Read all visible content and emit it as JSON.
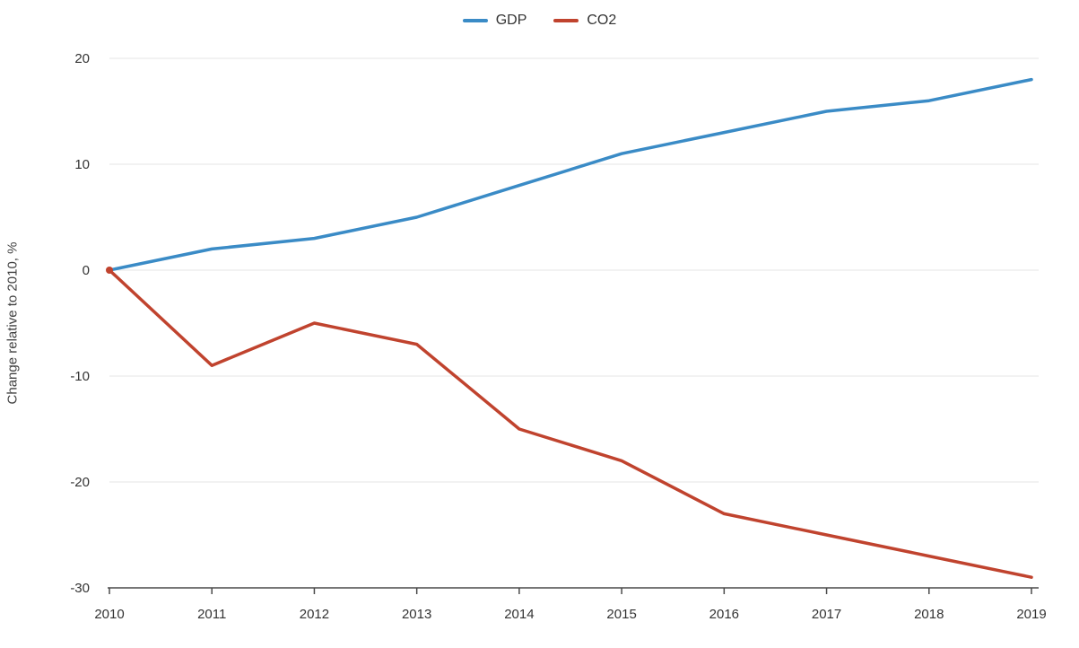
{
  "chart_data": {
    "type": "line",
    "x": [
      2010,
      2011,
      2012,
      2013,
      2014,
      2015,
      2016,
      2017,
      2018,
      2019
    ],
    "series": [
      {
        "name": "GDP",
        "color": "#3a8bc6",
        "values": [
          0,
          2,
          3,
          5,
          8,
          11,
          13,
          15,
          16,
          18
        ]
      },
      {
        "name": "CO2",
        "color": "#c0432e",
        "values": [
          0,
          -9,
          -5,
          -7,
          -15,
          -18,
          -23,
          -25,
          -27,
          -29
        ]
      }
    ],
    "title": "",
    "xlabel": "",
    "ylabel": "Change relative to 2010, %",
    "ylim": [
      -30,
      20
    ],
    "yticks": [
      20,
      10,
      0,
      -10,
      -20,
      -30
    ],
    "grid": true,
    "legend_position": "top-center"
  },
  "colors": {
    "gridline": "#e4e4e4",
    "axis": "#4a4a4a",
    "tick_text": "#333333"
  }
}
